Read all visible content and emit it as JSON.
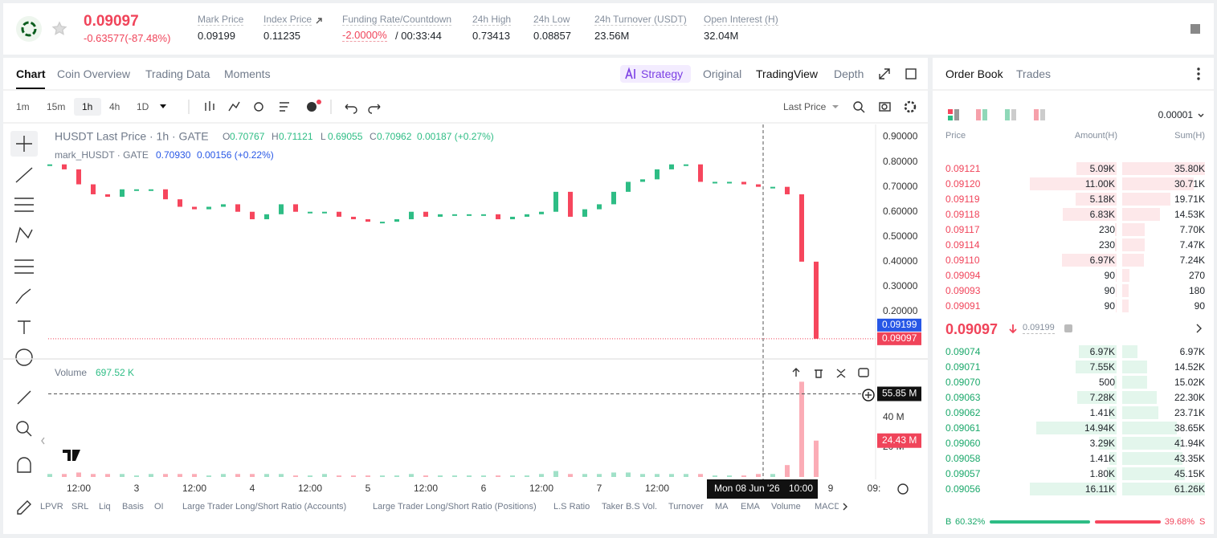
{
  "header": {
    "price": "0.09097",
    "change": "-0.63577(-87.48%)",
    "stats": [
      {
        "label": "Mark Price",
        "value": "0.09199"
      },
      {
        "label": "Index Price",
        "value": "0.11235"
      },
      {
        "label": "Funding Rate/Countdown",
        "value": "-2.0000%",
        "extra": "/ 00:33:44"
      },
      {
        "label": "24h High",
        "value": "0.73413"
      },
      {
        "label": "24h Low",
        "value": "0.08857"
      },
      {
        "label": "24h Turnover (USDT)",
        "value": "23.56M"
      },
      {
        "label": "Open Interest (H)",
        "value": "32.04M"
      }
    ]
  },
  "tabs": [
    "Chart",
    "Coin Overview",
    "Trading Data",
    "Moments"
  ],
  "views": [
    "Strategy",
    "Original",
    "TradingView",
    "Depth"
  ],
  "toolbar": {
    "intervals": [
      "1m",
      "15m",
      "1h",
      "4h",
      "1D"
    ],
    "price_source": "Last Price"
  },
  "chart_data": {
    "type": "candlestick",
    "legend": {
      "title": "HUSDT Last Price · 1h · GATE",
      "ohlc": [
        {
          "key": "O",
          "value": "0.70767"
        },
        {
          "key": "H",
          "value": "0.71121"
        },
        {
          "key": "L",
          "value": "0.69055"
        },
        {
          "key": "C",
          "value": "0.70962"
        }
      ],
      "change": "0.00187 (+0.27%)",
      "mark_title": "mark_HUSDT · GATE",
      "mark_value": "0.70930",
      "mark_change": "0.00156 (+0.22%)",
      "volume_title": "Volume",
      "volume_value": "697.52 K"
    },
    "categories": [
      null,
      null,
      "12:00",
      null,
      null,
      null,
      "3",
      null,
      null,
      null,
      "12:00",
      null,
      null,
      null,
      "4",
      null,
      null,
      null,
      "12:00",
      null,
      null,
      null,
      "5",
      null,
      null,
      null,
      "12:00",
      null,
      null,
      null,
      "6",
      null,
      null,
      null,
      "12:00",
      null,
      null,
      null,
      "7",
      null,
      null,
      null,
      "12:00",
      null,
      null,
      null,
      null,
      null,
      null,
      null,
      null,
      null,
      null,
      null,
      "9",
      null,
      null,
      "09:"
    ],
    "values": [
      0.79,
      0.77,
      0.71,
      0.67,
      0.66,
      0.69,
      0.69,
      0.69,
      0.65,
      0.62,
      0.61,
      0.62,
      0.63,
      0.6,
      0.57,
      0.59,
      0.63,
      0.6,
      0.6,
      0.6,
      0.58,
      0.57,
      0.56,
      0.56,
      0.57,
      0.6,
      0.58,
      0.59,
      0.59,
      0.59,
      0.59,
      0.57,
      0.58,
      0.59,
      0.6,
      0.68,
      0.58,
      0.61,
      0.63,
      0.68,
      0.72,
      0.73,
      0.77,
      0.79,
      0.79,
      0.72,
      0.72,
      0.72,
      0.71,
      0.7,
      0.7,
      0.67,
      0.4,
      0.09097,
      null,
      null,
      null,
      null
    ],
    "volumes": [
      2,
      2,
      3,
      2,
      2,
      2,
      1,
      2,
      2,
      2,
      2,
      1,
      2,
      2,
      2,
      2,
      2,
      1,
      1,
      2,
      1,
      1,
      1,
      1,
      1,
      2,
      1,
      1,
      1,
      1,
      1,
      1,
      1,
      1,
      2,
      4,
      2,
      2,
      2,
      3,
      3,
      2,
      2,
      2,
      2,
      2,
      1,
      1,
      1,
      2,
      2,
      8,
      64,
      24.43,
      null,
      null,
      null,
      null
    ],
    "ylim": [
      0.01,
      0.95
    ],
    "yticks": [
      {
        "value": 0.9,
        "label": "0.90000"
      },
      {
        "value": 0.8,
        "label": "0.80000"
      },
      {
        "value": 0.7,
        "label": "0.70000"
      },
      {
        "value": 0.6,
        "label": "0.60000"
      },
      {
        "value": 0.5,
        "label": "0.50000"
      },
      {
        "value": 0.4,
        "label": "0.40000"
      },
      {
        "value": 0.3,
        "label": "0.30000"
      },
      {
        "value": 0.2,
        "label": "0.20000"
      }
    ],
    "price_tags": [
      {
        "value": 0.09199,
        "color": "#2757e6"
      },
      {
        "value": 0.09097,
        "color": "#f0445a"
      }
    ],
    "volume_ylim": [
      0,
      75
    ],
    "volume_yticks": [
      {
        "value": 40,
        "label": "40 M"
      },
      {
        "value": 20,
        "label": "20 M"
      }
    ],
    "volume_tags": [
      {
        "value": 55.85,
        "label": "55.85 M",
        "color": "#111111"
      },
      {
        "value": 24.43,
        "label": "24.43 M",
        "color": "#f0445a"
      }
    ],
    "crosshair": {
      "date": "Mon 08 Jun '26",
      "time": "10:00"
    },
    "up_color": "#2ebd85",
    "down_color": "#f6465d"
  },
  "indicators": [
    "LPVR",
    "SRL",
    "Liq",
    "Basis",
    "OI",
    "Large Trader Long/Short Ratio (Accounts)",
    "Large Trader Long/Short Ratio (Positions)",
    "L.S Ratio",
    "Taker B.S Vol.",
    "Turnover",
    "MA",
    "EMA",
    "Volume",
    "MACD"
  ],
  "order_book": {
    "tabs": [
      "Order Book",
      "Trades"
    ],
    "tick": "0.00001",
    "columns": [
      "Price",
      "Amount(H)",
      "Sum(H)"
    ],
    "asks": [
      [
        "0.09121",
        "5.09K",
        "35.80K"
      ],
      [
        "0.09120",
        "11.00K",
        "30.71K"
      ],
      [
        "0.09119",
        "5.18K",
        "19.71K"
      ],
      [
        "0.09118",
        "6.83K",
        "14.53K"
      ],
      [
        "0.09117",
        "230",
        "7.70K"
      ],
      [
        "0.09114",
        "230",
        "7.47K"
      ],
      [
        "0.09110",
        "6.97K",
        "7.24K"
      ],
      [
        "0.09094",
        "90",
        "270"
      ],
      [
        "0.09093",
        "90",
        "180"
      ],
      [
        "0.09091",
        "90",
        "90"
      ]
    ],
    "last_price": "0.09097",
    "mark_price": "0.09199",
    "bids": [
      [
        "0.09074",
        "6.97K",
        "6.97K"
      ],
      [
        "0.09071",
        "7.55K",
        "14.52K"
      ],
      [
        "0.09070",
        "500",
        "15.02K"
      ],
      [
        "0.09063",
        "7.28K",
        "22.30K"
      ],
      [
        "0.09062",
        "1.41K",
        "23.71K"
      ],
      [
        "0.09061",
        "14.94K",
        "38.65K"
      ],
      [
        "0.09060",
        "3.29K",
        "41.94K"
      ],
      [
        "0.09058",
        "1.41K",
        "43.35K"
      ],
      [
        "0.09057",
        "1.80K",
        "45.15K"
      ],
      [
        "0.09056",
        "16.11K",
        "61.26K"
      ]
    ],
    "buy_label": "B",
    "sell_label": "S",
    "ratio": {
      "buy": {
        "value": 60.32,
        "label": "60.32%"
      },
      "sell": {
        "value": 39.68,
        "label": "39.68%"
      }
    }
  }
}
